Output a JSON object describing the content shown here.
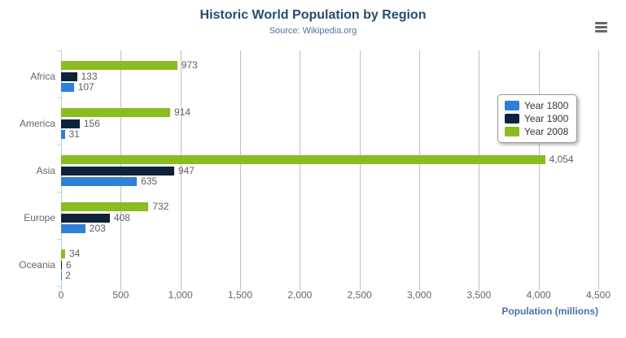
{
  "header": {
    "title": "Historic World Population by Region",
    "subtitle": "Source: Wikipedia.org"
  },
  "menu": {
    "icon": "hamburger-menu-icon"
  },
  "colors": {
    "title": "#274b6d",
    "subtitle": "#4d759e",
    "axis_title": "#4572a7",
    "gridline": "#c0c0c0",
    "axis_line": "#c0d0e0",
    "label": "#666666",
    "value_label": "#606060"
  },
  "chart_data": {
    "type": "bar",
    "title": "Historic World Population by Region",
    "subtitle": "Source: Wikipedia.org",
    "categories": [
      "Africa",
      "America",
      "Asia",
      "Europe",
      "Oceania"
    ],
    "series": [
      {
        "name": "Year 1800",
        "color": "#2f7ed8",
        "values": [
          107,
          31,
          635,
          203,
          2
        ]
      },
      {
        "name": "Year 1900",
        "color": "#0d233a",
        "values": [
          133,
          156,
          947,
          408,
          6
        ]
      },
      {
        "name": "Year 2008",
        "color": "#8bbc21",
        "values": [
          973,
          914,
          4054,
          732,
          34
        ]
      }
    ],
    "bar_display_order_top_to_bottom": [
      "Year 2008",
      "Year 1900",
      "Year 1800"
    ],
    "xlabel": "Population (millions)",
    "ylabel": "",
    "xlim": [
      0,
      4500
    ],
    "xticks": [
      0,
      500,
      1000,
      1500,
      2000,
      2500,
      3000,
      3500,
      4000,
      4500
    ],
    "grid": true,
    "legend_position": "right",
    "value_labels": true
  }
}
